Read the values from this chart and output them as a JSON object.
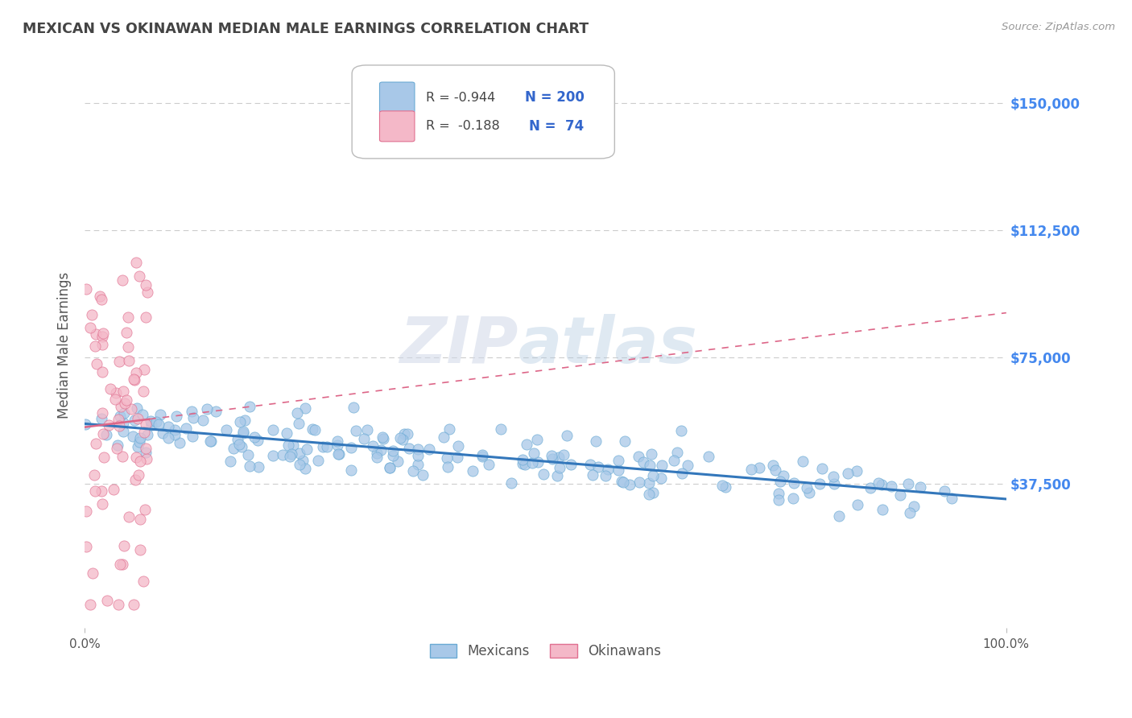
{
  "title": "MEXICAN VS OKINAWAN MEDIAN MALE EARNINGS CORRELATION CHART",
  "source": "Source: ZipAtlas.com",
  "ylabel": "Median Male Earnings",
  "ytick_labels": [
    "$37,500",
    "$75,000",
    "$112,500",
    "$150,000"
  ],
  "ytick_values": [
    37500,
    75000,
    112500,
    150000
  ],
  "ylim": [
    -5000,
    162000
  ],
  "xlim": [
    0,
    1.0
  ],
  "xtick_values": [
    0,
    1.0
  ],
  "xtick_labels": [
    "0.0%",
    "100.0%"
  ],
  "mexican_color": "#a8c8e8",
  "mexican_edge": "#6aaad4",
  "okinawan_color": "#f4b8c8",
  "okinawan_edge": "#e07090",
  "trend_mexican_color": "#3377bb",
  "trend_okinawan_color": "#dd6688",
  "legend_r_mexican": "-0.944",
  "legend_n_mexican": "200",
  "legend_r_okinawan": "-0.188",
  "legend_n_okinawan": "74",
  "watermark_zip": "ZIP",
  "watermark_atlas": "atlas",
  "background_color": "#ffffff",
  "grid_color": "#cccccc",
  "title_color": "#444444",
  "axis_label_color": "#555555",
  "ytick_color": "#4488ee",
  "legend_text_color": "#3366cc",
  "legend_n_color": "#3366cc"
}
